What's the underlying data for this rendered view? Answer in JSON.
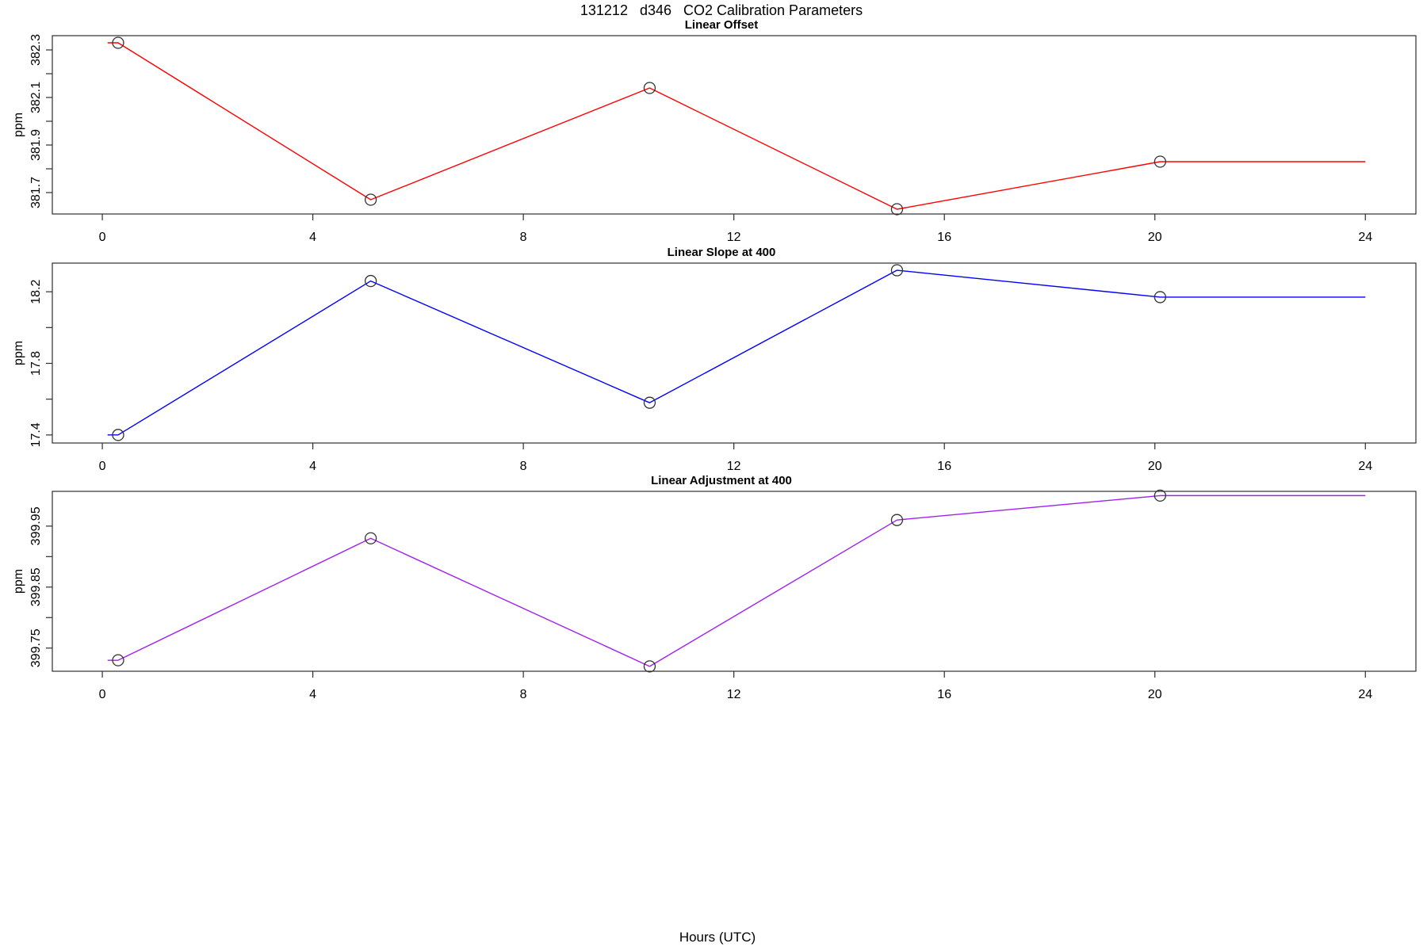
{
  "figure": {
    "title": "131212   d346   CO2 Calibration Parameters",
    "xlabel": "Hours (UTC)"
  },
  "chart_data": [
    {
      "type": "line",
      "title": "Linear Offset",
      "ylabel": "ppm",
      "line_color": "#ff0000",
      "marker": "open-circle",
      "marker_color": "#333333",
      "grid": false,
      "legend": "none",
      "xlim": [
        -0.95,
        24.96
      ],
      "ylim": [
        381.61,
        382.36
      ],
      "xticks": [
        0,
        4,
        8,
        12,
        16,
        20,
        24
      ],
      "yticks": [
        381.7,
        381.8,
        381.9,
        382.0,
        382.1,
        382.2,
        382.3
      ],
      "ytick_labels": [
        "381.7",
        "",
        "381.9",
        "",
        "382.1",
        "",
        "382.3"
      ],
      "x": [
        0.1,
        0.3,
        5.1,
        10.4,
        15.1,
        20.1,
        24
      ],
      "y": [
        382.33,
        382.33,
        381.67,
        382.14,
        381.63,
        381.83,
        381.83
      ],
      "marker_indices": [
        1,
        2,
        3,
        4,
        5
      ]
    },
    {
      "type": "line",
      "title": "Linear Slope at 400",
      "ylabel": "ppm",
      "line_color": "#0000ff",
      "marker": "open-circle",
      "marker_color": "#333333",
      "grid": false,
      "legend": "none",
      "xlim": [
        -0.95,
        24.96
      ],
      "ylim": [
        17.355,
        18.36
      ],
      "xticks": [
        0,
        4,
        8,
        12,
        16,
        20,
        24
      ],
      "yticks": [
        17.4,
        17.6,
        17.8,
        18.0,
        18.2
      ],
      "ytick_labels": [
        "17.4",
        "",
        "17.8",
        "",
        "18.2"
      ],
      "x": [
        0.1,
        0.3,
        5.1,
        10.4,
        15.1,
        20.1,
        24
      ],
      "y": [
        17.4,
        17.4,
        18.26,
        17.58,
        18.32,
        18.17,
        18.17
      ],
      "marker_indices": [
        1,
        2,
        3,
        4,
        5
      ]
    },
    {
      "type": "line",
      "title": "Linear Adjustment at 400",
      "ylabel": "ppm",
      "line_color": "#a020f0",
      "marker": "open-circle",
      "marker_color": "#333333",
      "grid": false,
      "legend": "none",
      "xlim": [
        -0.95,
        24.96
      ],
      "ylim": [
        399.712,
        400.007
      ],
      "xticks": [
        0,
        4,
        8,
        12,
        16,
        20,
        24
      ],
      "yticks": [
        399.75,
        399.8,
        399.85,
        399.9,
        399.95
      ],
      "ytick_labels": [
        "399.75",
        "",
        "399.85",
        "",
        "399.95"
      ],
      "x": [
        0.1,
        0.3,
        5.1,
        10.4,
        15.1,
        20.1,
        24
      ],
      "y": [
        399.73,
        399.73,
        399.93,
        399.72,
        399.96,
        400.0,
        400.0
      ],
      "marker_indices": [
        1,
        2,
        3,
        4,
        5
      ]
    }
  ]
}
